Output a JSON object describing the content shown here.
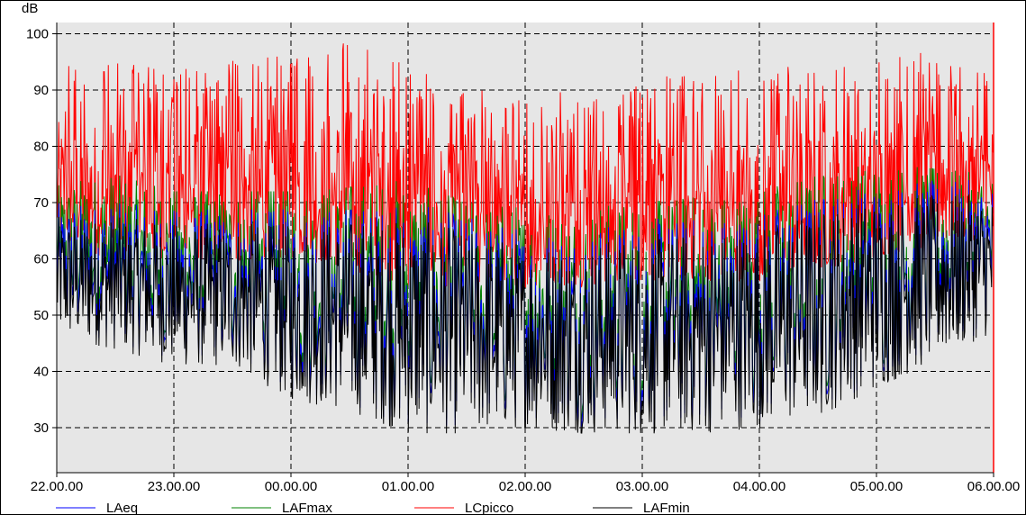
{
  "chart_data": {
    "type": "line",
    "ylabel": "dB",
    "xlabel": "",
    "title": "",
    "ylim": [
      22,
      102
    ],
    "y_ticks": [
      30,
      40,
      50,
      60,
      70,
      80,
      90,
      100
    ],
    "x_ticks": [
      "22.00.00",
      "23.00.00",
      "00.00.00",
      "01.00.00",
      "02.00.00",
      "03.00.00",
      "04.00.00",
      "05.00.00",
      "06.00.00"
    ],
    "grid": true,
    "plot_background": "#e6e6e6",
    "legend_position": "bottom",
    "x_hours": [
      0,
      0.5,
      1,
      1.5,
      2,
      2.5,
      3,
      3.5,
      4,
      4.5,
      5,
      5.5,
      6,
      6.5,
      7,
      7.5,
      8
    ],
    "series": [
      {
        "name": "LAeq",
        "color": "#0000ff",
        "envelope_min": [
          48,
          45,
          42,
          42,
          36,
          34,
          30,
          30,
          31,
          30,
          30,
          30,
          31,
          33,
          38,
          43,
          48
        ],
        "envelope_max": [
          70,
          70,
          69,
          69,
          69,
          70,
          70,
          68,
          66,
          66,
          67,
          68,
          69,
          72,
          74,
          74,
          74
        ]
      },
      {
        "name": "LAFmax",
        "color": "#008000",
        "envelope_min": [
          48,
          45,
          42,
          42,
          36,
          34,
          30,
          30,
          31,
          30,
          30,
          30,
          31,
          33,
          38,
          43,
          48
        ],
        "envelope_max": [
          73,
          75,
          72,
          72,
          72,
          73,
          74,
          70,
          69,
          69,
          70,
          71,
          72,
          75,
          77,
          76,
          75
        ]
      },
      {
        "name": "LCpicco",
        "color": "#ff0000",
        "envelope_min": [
          62,
          60,
          60,
          59,
          60,
          58,
          55,
          55,
          55,
          55,
          56,
          56,
          56,
          58,
          60,
          62,
          64
        ],
        "envelope_max": [
          94,
          96,
          93,
          97,
          96,
          100,
          94,
          91,
          88,
          91,
          92,
          93,
          94,
          95,
          96,
          97,
          93
        ]
      },
      {
        "name": "LAFmin",
        "color": "#000000",
        "envelope_min": [
          46,
          44,
          41,
          41,
          35,
          33,
          29,
          29,
          30,
          29,
          29,
          29,
          30,
          32,
          37,
          42,
          47
        ],
        "envelope_max": [
          68,
          68,
          67,
          67,
          67,
          68,
          68,
          66,
          64,
          64,
          65,
          66,
          67,
          70,
          72,
          72,
          72
        ]
      }
    ]
  }
}
